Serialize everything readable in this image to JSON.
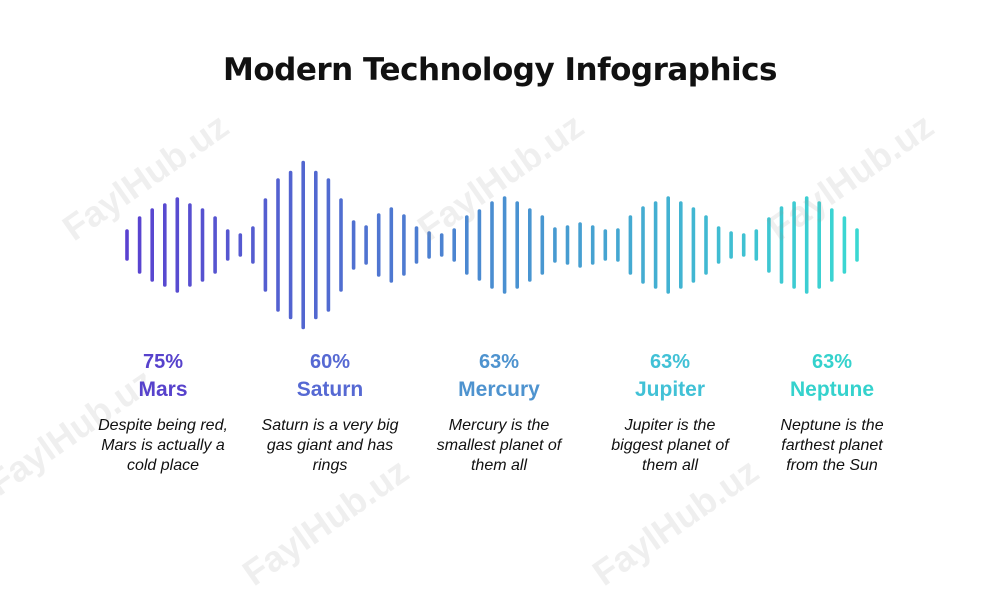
{
  "title": "Modern Technology Infographics",
  "watermark": "FaylHub.uz",
  "gradient": {
    "start": "#5a40d0",
    "end": "#3ad9d2"
  },
  "planets": [
    {
      "percent": "75%",
      "name": "Mars",
      "description": [
        "Despite being red,",
        "Mars is actually a",
        "cold place"
      ],
      "color": "#5742cc"
    },
    {
      "percent": "60%",
      "name": "Saturn",
      "description": [
        "Saturn is a very big",
        "gas giant and has",
        "rings"
      ],
      "color": "#5669d3"
    },
    {
      "percent": "63%",
      "name": "Mercury",
      "description": [
        "Mercury is the",
        "smallest planet of",
        "them all"
      ],
      "color": "#4e93cf"
    },
    {
      "percent": "63%",
      "name": "Jupiter",
      "description": [
        "Jupiter is the",
        "biggest planet of",
        "them all"
      ],
      "color": "#41c1d6"
    },
    {
      "percent": "63%",
      "name": "Neptune",
      "description": [
        "Neptune is the",
        "farthest planet",
        "from the Sun"
      ],
      "color": "#35d2cd"
    }
  ]
}
